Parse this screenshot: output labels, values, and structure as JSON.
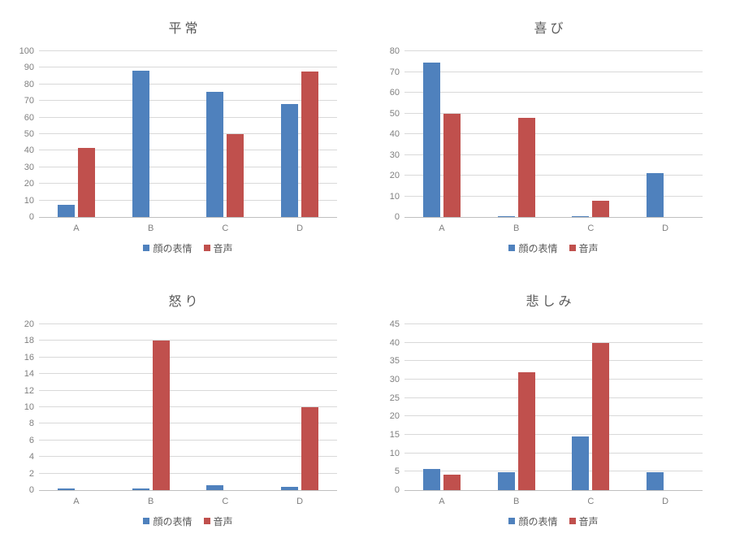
{
  "page": {
    "background": "#ffffff"
  },
  "palette": {
    "series_face": "#4F81BD",
    "series_voice": "#C0504D",
    "gridline": "#D9D9D9",
    "axis_line": "#BFBFBF",
    "title_text": "#595959",
    "tick_text": "#7F7F7F"
  },
  "chart_data": [
    {
      "id": "neutral",
      "type": "bar",
      "title": "平常",
      "categories": [
        "A",
        "B",
        "C",
        "D"
      ],
      "series": [
        {
          "name": "顔の表情",
          "color": "#4F81BD",
          "values": [
            7.5,
            88.5,
            75.5,
            68
          ]
        },
        {
          "name": "音声",
          "color": "#C0504D",
          "values": [
            41.5,
            0,
            50,
            88
          ]
        }
      ],
      "ylim": [
        0,
        100
      ],
      "ytick_step": 10,
      "grid": true,
      "legend_position": "bottom"
    },
    {
      "id": "joy",
      "type": "bar",
      "title": "喜び",
      "categories": [
        "A",
        "B",
        "C",
        "D"
      ],
      "series": [
        {
          "name": "顔の表情",
          "color": "#4F81BD",
          "values": [
            74.5,
            0.5,
            0.5,
            21
          ]
        },
        {
          "name": "音声",
          "color": "#C0504D",
          "values": [
            50,
            48,
            8,
            0
          ]
        }
      ],
      "ylim": [
        0,
        80
      ],
      "ytick_step": 10,
      "grid": true,
      "legend_position": "bottom"
    },
    {
      "id": "anger",
      "type": "bar",
      "title": "怒り",
      "categories": [
        "A",
        "B",
        "C",
        "D"
      ],
      "series": [
        {
          "name": "顔の表情",
          "color": "#4F81BD",
          "values": [
            0.2,
            0.2,
            0.6,
            0.4
          ]
        },
        {
          "name": "音声",
          "color": "#C0504D",
          "values": [
            0,
            18,
            0,
            10
          ]
        }
      ],
      "ylim": [
        0,
        20
      ],
      "ytick_step": 2,
      "grid": true,
      "legend_position": "bottom"
    },
    {
      "id": "sadness",
      "type": "bar",
      "title": "悲しみ",
      "categories": [
        "A",
        "B",
        "C",
        "D"
      ],
      "series": [
        {
          "name": "顔の表情",
          "color": "#4F81BD",
          "values": [
            5.7,
            4.8,
            14.5,
            4.8
          ]
        },
        {
          "name": "音声",
          "color": "#C0504D",
          "values": [
            4.2,
            32,
            40,
            0
          ]
        }
      ],
      "ylim": [
        0,
        45
      ],
      "ytick_step": 5,
      "grid": true,
      "legend_position": "bottom"
    }
  ]
}
